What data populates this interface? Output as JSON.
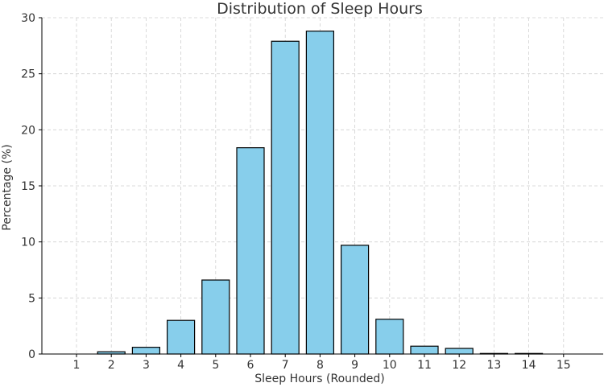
{
  "chart_data": {
    "type": "bar",
    "title": "Distribution of Sleep Hours",
    "xlabel": "Sleep Hours (Rounded)",
    "ylabel": "Percentage (%)",
    "categories": [
      "1",
      "2",
      "3",
      "4",
      "5",
      "6",
      "7",
      "8",
      "9",
      "10",
      "11",
      "12",
      "13",
      "14",
      "15"
    ],
    "values": [
      0.0,
      0.2,
      0.6,
      3.0,
      6.6,
      18.4,
      27.9,
      28.8,
      9.7,
      3.1,
      0.7,
      0.5,
      0.05,
      0.05,
      0.0
    ],
    "ylim": [
      0,
      30
    ],
    "yticks": [
      "0",
      "5",
      "10",
      "15",
      "20",
      "25",
      "30"
    ],
    "grid": true,
    "colors": {
      "bar_fill": "#87ceeb",
      "bar_edge": "#000000",
      "grid": "#d0d0d0",
      "axis": "#000000"
    }
  }
}
